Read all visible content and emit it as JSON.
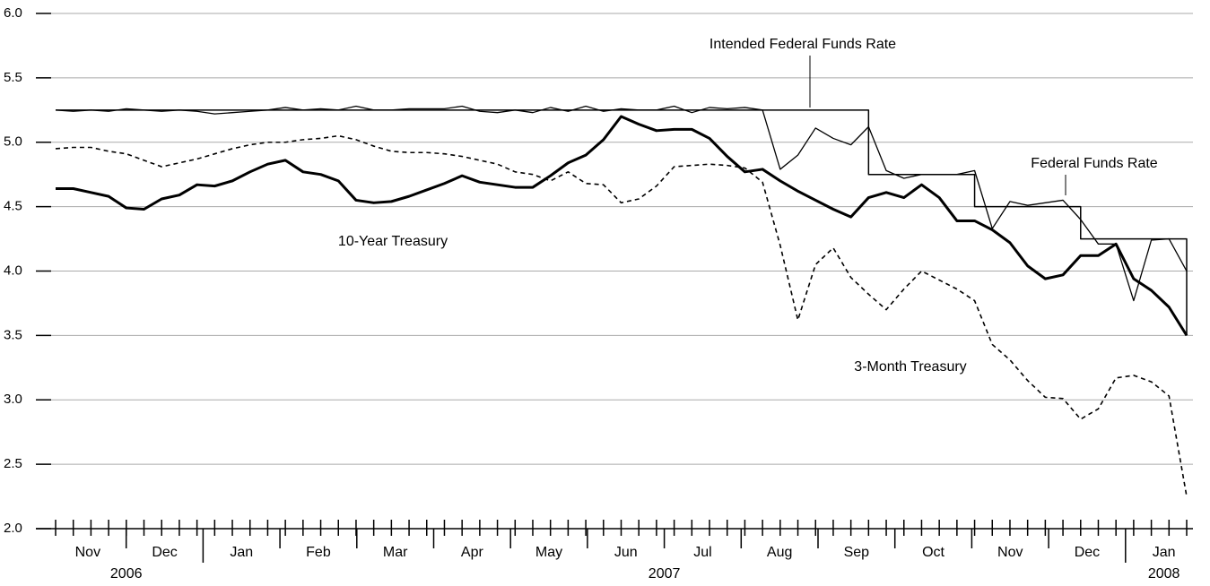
{
  "chart_data": {
    "type": "line",
    "categories": [
      null,
      null,
      null,
      null,
      null,
      null,
      null,
      null,
      null,
      null,
      null,
      null,
      null,
      null,
      null,
      null,
      null,
      null,
      null,
      null,
      null,
      null,
      null,
      null,
      null,
      null,
      null,
      null,
      null,
      null,
      null,
      null,
      null,
      null,
      null,
      null,
      null,
      null,
      null,
      null,
      null,
      null,
      null,
      null,
      null,
      null,
      null,
      null,
      null,
      null,
      null,
      null,
      null,
      null,
      null,
      null,
      null,
      null,
      null,
      null,
      null,
      null,
      null,
      null,
      null
    ],
    "months": [
      "Nov",
      "Dec",
      "Jan",
      "Feb",
      "Mar",
      "Apr",
      "May",
      "Jun",
      "Jul",
      "Aug",
      "Sep",
      "Oct",
      "Nov",
      "Dec",
      "Jan"
    ],
    "years": [
      "2006",
      "2007",
      "2008"
    ],
    "ylim": [
      2.0,
      6.0
    ],
    "yticks": [
      {
        "value": 2,
        "label": "2.0"
      },
      {
        "value": 2.5,
        "label": "2.5"
      },
      {
        "value": 3,
        "label": "3.0"
      },
      {
        "value": 3.5,
        "label": "3.5"
      },
      {
        "value": 4,
        "label": "4.0"
      },
      {
        "value": 4.5,
        "label": "4.5"
      },
      {
        "value": 5,
        "label": "5.0"
      },
      {
        "value": 5.5,
        "label": "5.5"
      },
      {
        "value": 6,
        "label": "6.0"
      }
    ],
    "grid": true,
    "series": [
      {
        "name": "10-Year Treasury",
        "color": "#000000",
        "style": "thick",
        "values": [
          4.64,
          4.64,
          4.61,
          4.58,
          4.49,
          4.48,
          4.56,
          4.59,
          4.67,
          4.66,
          4.7,
          4.77,
          4.83,
          4.86,
          4.77,
          4.75,
          4.7,
          4.55,
          4.53,
          4.54,
          4.58,
          4.63,
          4.68,
          4.74,
          4.69,
          4.67,
          4.65,
          4.65,
          4.74,
          4.84,
          4.9,
          5.02,
          5.2,
          5.14,
          5.09,
          5.1,
          5.1,
          5.03,
          4.89,
          4.77,
          4.79,
          4.7,
          4.62,
          4.55,
          4.48,
          4.42,
          4.57,
          4.61,
          4.57,
          4.67,
          4.57,
          4.39,
          4.39,
          4.32,
          4.22,
          4.04,
          3.94,
          3.97,
          4.12,
          4.12,
          4.21,
          3.94,
          3.85,
          3.72,
          3.5
        ]
      },
      {
        "name": "3-Month Treasury",
        "color": "#000000",
        "style": "dashed",
        "values": [
          4.95,
          4.96,
          4.96,
          4.93,
          4.91,
          4.86,
          4.81,
          4.84,
          4.87,
          4.91,
          4.95,
          4.98,
          5.0,
          5.0,
          5.02,
          5.03,
          5.05,
          5.02,
          4.97,
          4.93,
          4.92,
          4.92,
          4.91,
          4.89,
          4.86,
          4.83,
          4.77,
          4.75,
          4.7,
          4.77,
          4.68,
          4.67,
          4.53,
          4.56,
          4.66,
          4.81,
          4.82,
          4.83,
          4.82,
          4.8,
          4.69,
          4.2,
          3.62,
          4.05,
          4.18,
          3.95,
          3.82,
          3.7,
          3.86,
          4.0,
          3.93,
          3.86,
          3.77,
          3.43,
          3.31,
          3.15,
          3.02,
          3.01,
          2.85,
          2.93,
          3.17,
          3.19,
          3.14,
          3.03,
          2.25
        ]
      },
      {
        "name": "Federal Funds Rate",
        "color": "#000000",
        "style": "thin",
        "values": [
          5.25,
          5.24,
          5.25,
          5.24,
          5.26,
          5.25,
          5.24,
          5.25,
          5.24,
          5.22,
          5.23,
          5.24,
          5.25,
          5.27,
          5.25,
          5.26,
          5.25,
          5.28,
          5.25,
          5.25,
          5.26,
          5.26,
          5.26,
          5.28,
          5.24,
          5.23,
          5.25,
          5.23,
          5.27,
          5.24,
          5.28,
          5.24,
          5.26,
          5.25,
          5.25,
          5.28,
          5.23,
          5.27,
          5.26,
          5.27,
          5.25,
          4.79,
          4.9,
          5.11,
          5.03,
          4.98,
          5.12,
          4.78,
          4.72,
          4.75,
          4.75,
          4.75,
          4.78,
          4.33,
          4.54,
          4.51,
          4.53,
          4.55,
          4.4,
          4.21,
          4.21,
          3.77,
          4.24,
          4.25,
          4.0
        ]
      },
      {
        "name": "Intended Federal Funds Rate",
        "color": "#000000",
        "style": "step",
        "values": [
          5.25,
          5.25,
          5.25,
          5.25,
          5.25,
          5.25,
          5.25,
          5.25,
          5.25,
          5.25,
          5.25,
          5.25,
          5.25,
          5.25,
          5.25,
          5.25,
          5.25,
          5.25,
          5.25,
          5.25,
          5.25,
          5.25,
          5.25,
          5.25,
          5.25,
          5.25,
          5.25,
          5.25,
          5.25,
          5.25,
          5.25,
          5.25,
          5.25,
          5.25,
          5.25,
          5.25,
          5.25,
          5.25,
          5.25,
          5.25,
          5.25,
          5.25,
          5.25,
          5.25,
          5.25,
          5.25,
          4.75,
          4.75,
          4.75,
          4.75,
          4.75,
          4.75,
          4.5,
          4.5,
          4.5,
          4.5,
          4.5,
          4.5,
          4.25,
          4.25,
          4.25,
          4.25,
          4.25,
          4.25,
          3.5
        ]
      }
    ]
  }
}
